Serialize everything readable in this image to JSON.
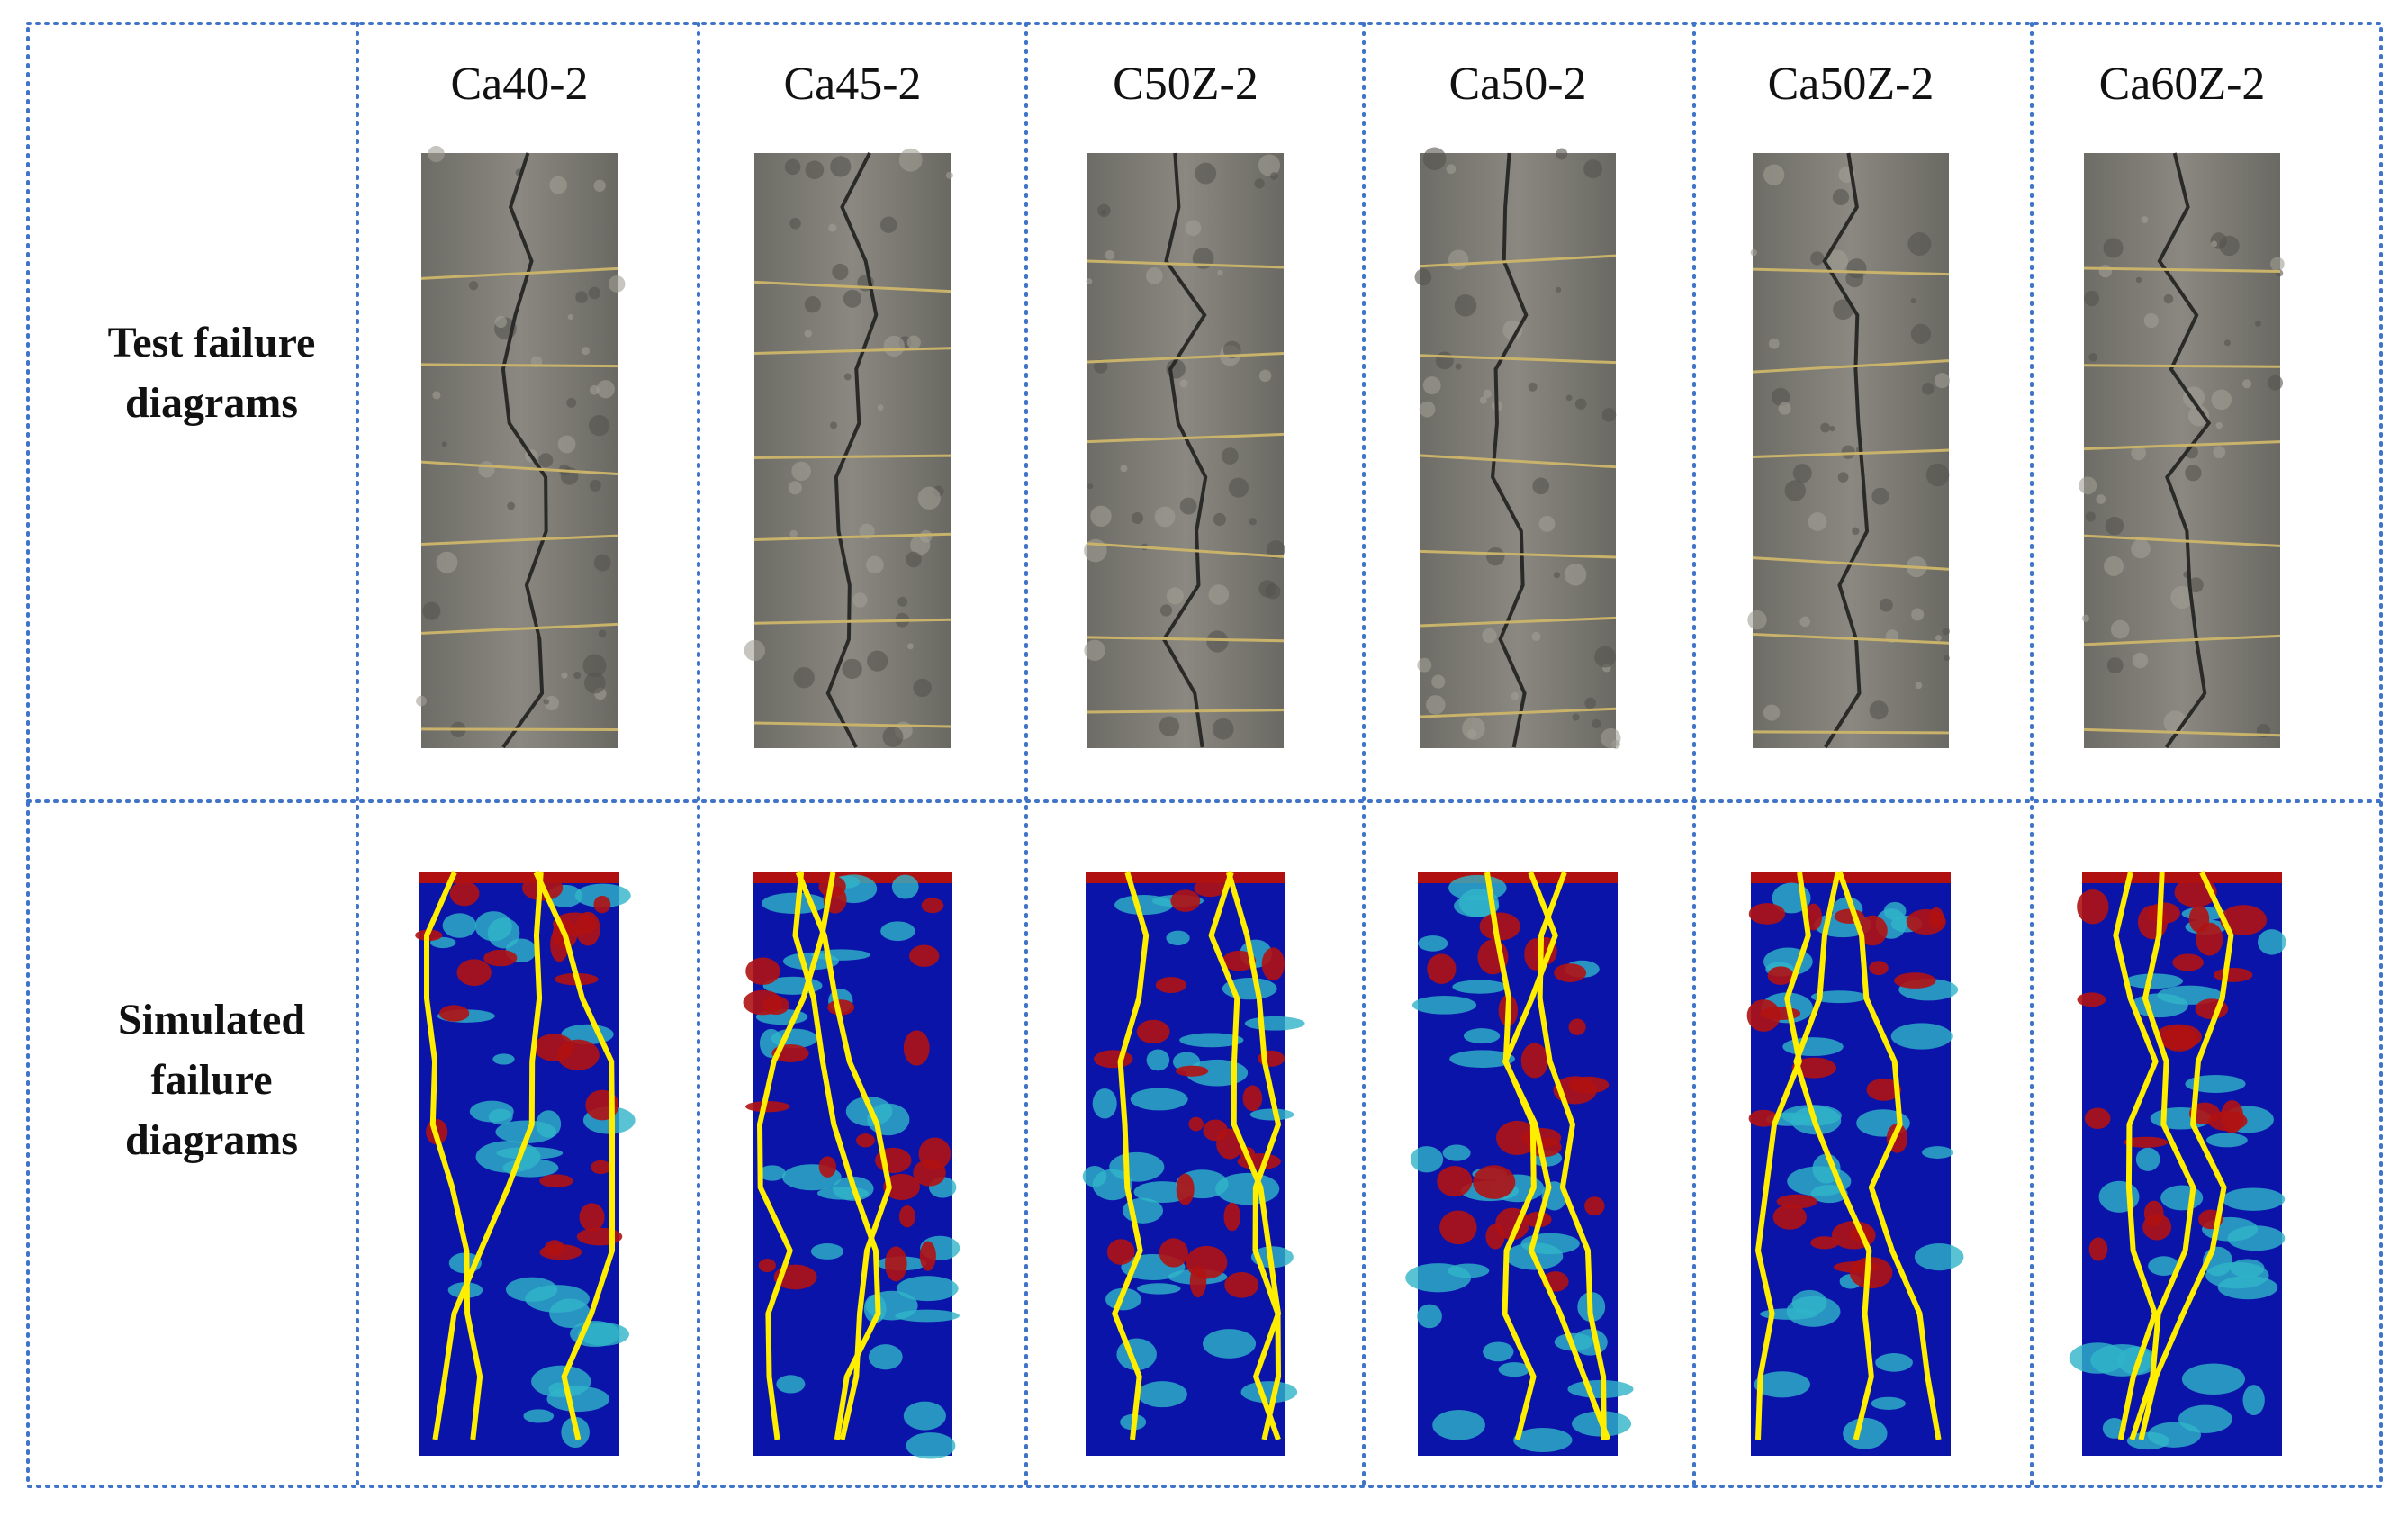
{
  "table": {
    "columns": [
      "Ca40-2",
      "Ca45-2",
      "C50Z-2",
      "Ca50-2",
      "Ca50Z-2",
      "Ca60Z-2"
    ],
    "rows": [
      "Test failure diagrams",
      "Simulated failure diagrams"
    ]
  }
}
